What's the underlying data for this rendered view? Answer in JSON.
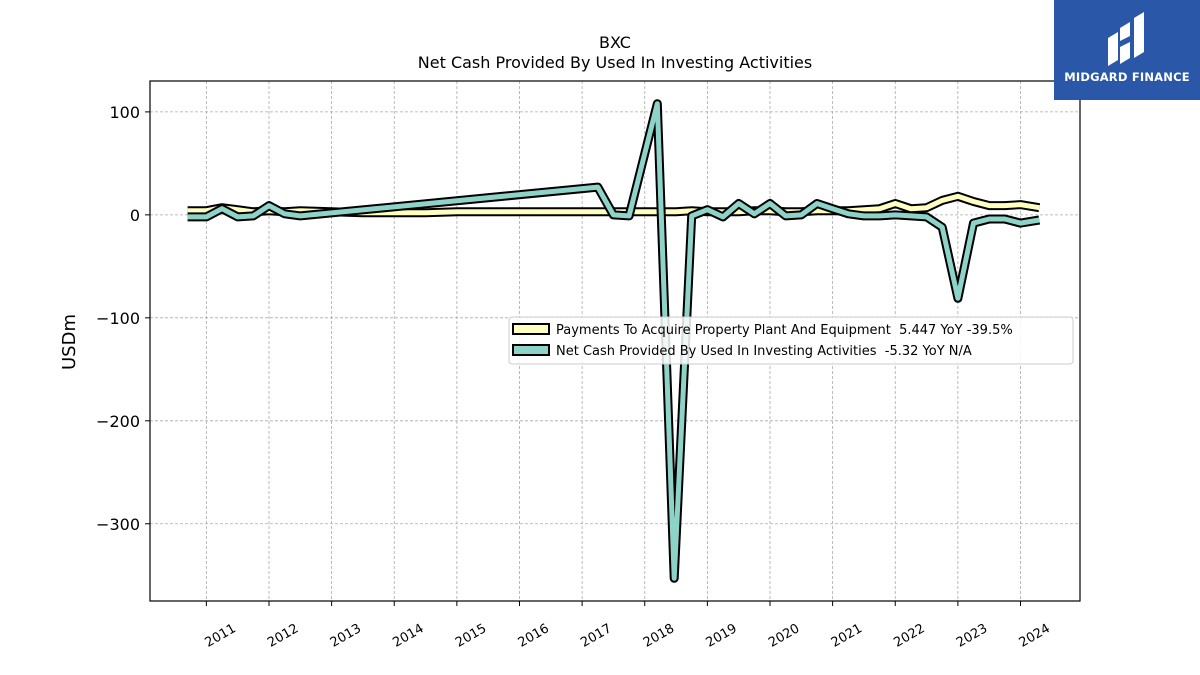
{
  "logo": {
    "text": "MIDGARD FINANCE",
    "bg_color": "#2a57a8",
    "icon": "midgard-logo-icon"
  },
  "chart_data": {
    "type": "line",
    "title": "BXC",
    "subtitle": "Net Cash Provided By Used In Investing Activities",
    "ylabel": "USDm",
    "xlabel": "",
    "ylim": [
      -375,
      130
    ],
    "xlim": [
      2010.1,
      2024.95
    ],
    "yticks": [
      100,
      0,
      -100,
      -200,
      -300
    ],
    "ytick_labels": [
      "100",
      "0",
      "−100",
      "−200",
      "−300"
    ],
    "xticks": [
      2011,
      2012,
      2013,
      2014,
      2015,
      2016,
      2017,
      2018,
      2019,
      2020,
      2021,
      2022,
      2023,
      2024
    ],
    "grid": true,
    "legend_position": "center-right",
    "series": [
      {
        "name": "Payments To Acquire Property Plant And Equipment  5.447 YoY -39.5%",
        "color": "#ffffbf",
        "x": [
          2010.7,
          2011.0,
          2011.25,
          2011.5,
          2011.75,
          2012.0,
          2012.25,
          2012.5,
          2013.0,
          2013.5,
          2014.0,
          2014.5,
          2015.0,
          2015.5,
          2016.0,
          2016.5,
          2017.0,
          2017.25,
          2017.5,
          2017.75,
          2018.0,
          2018.25,
          2018.5,
          2018.75,
          2019.0,
          2019.25,
          2019.5,
          2019.75,
          2020.0,
          2020.25,
          2020.5,
          2020.75,
          2021.0,
          2021.25,
          2021.5,
          2021.75,
          2022.0,
          2022.25,
          2022.5,
          2022.75,
          2023.0,
          2023.25,
          2023.5,
          2023.75,
          2024.0,
          2024.3
        ],
        "values": [
          4,
          4,
          7,
          5,
          3,
          4,
          3,
          4,
          3,
          2,
          2,
          2,
          3,
          3,
          3,
          3,
          3,
          3,
          3,
          3,
          3,
          3,
          3,
          4,
          3,
          3,
          3,
          4,
          4,
          3,
          3,
          4,
          4,
          4,
          5,
          6,
          11,
          6,
          7,
          14,
          18,
          13,
          9,
          9,
          10,
          7
        ]
      },
      {
        "name": "Net Cash Provided By Used In Investing Activities  -5.32 YoY N/A",
        "color": "#8dd3c7",
        "x": [
          2010.7,
          2011.0,
          2011.25,
          2011.5,
          2011.75,
          2012.0,
          2012.25,
          2012.5,
          2017.25,
          2017.5,
          2017.75,
          2018.2,
          2018.47,
          2018.75,
          2019.0,
          2019.25,
          2019.5,
          2019.75,
          2020.0,
          2020.25,
          2020.5,
          2020.75,
          2021.0,
          2021.25,
          2021.5,
          2021.75,
          2022.0,
          2022.25,
          2022.5,
          2022.75,
          2023.0,
          2023.25,
          2023.5,
          2023.75,
          2024.0,
          2024.3
        ],
        "values": [
          -2,
          -2,
          6,
          -2,
          -1,
          9,
          1,
          -1,
          27,
          0,
          -1,
          108,
          -353,
          -1,
          5,
          -2,
          11,
          1,
          11,
          -1,
          0,
          11,
          6,
          1,
          -1,
          -1,
          0,
          -1,
          -2,
          -12,
          -81,
          -8,
          -4,
          -4,
          -8,
          -5
        ]
      }
    ]
  }
}
